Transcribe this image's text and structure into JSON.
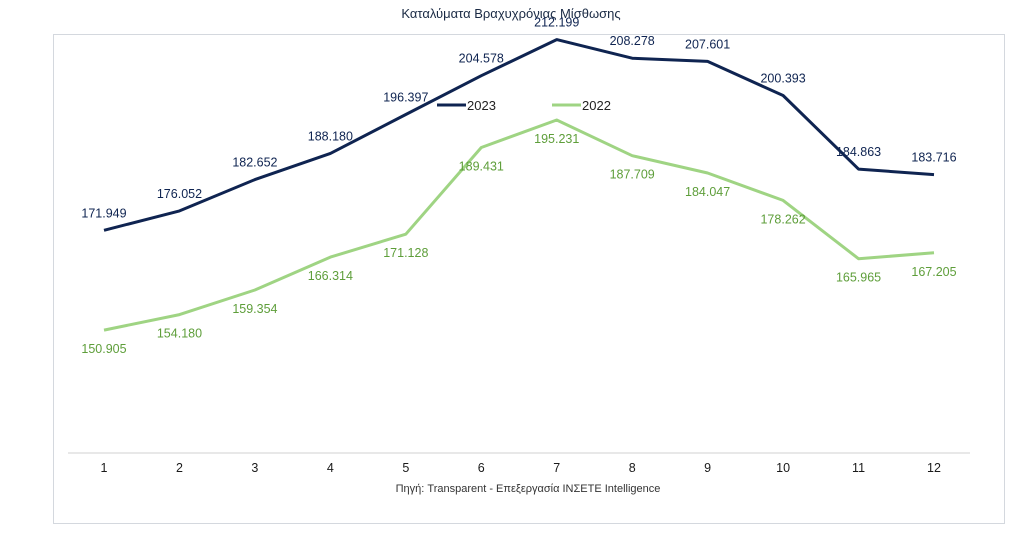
{
  "chart_data": {
    "type": "line",
    "title": "Καταλύματα Βραχυχρόνιας Μίσθωσης",
    "categories": [
      "1",
      "2",
      "3",
      "4",
      "5",
      "6",
      "7",
      "8",
      "9",
      "10",
      "11",
      "12"
    ],
    "series": [
      {
        "name": "2023",
        "color": "#0f2451",
        "label_color": "#0f2451",
        "values": [
          171949,
          176052,
          182652,
          188180,
          196397,
          204578,
          212199,
          208278,
          207601,
          200393,
          184863,
          183716
        ],
        "labels": [
          "171.949",
          "176.052",
          "182.652",
          "188.180",
          "196.397",
          "204.578",
          "212.199",
          "208.278",
          "207.601",
          "200.393",
          "184.863",
          "183.716"
        ]
      },
      {
        "name": "2022",
        "color": "#9fd483",
        "label_color": "#5e9e3a",
        "values": [
          150905,
          154180,
          159354,
          166314,
          171128,
          189431,
          195231,
          187709,
          184047,
          178262,
          165965,
          167205
        ],
        "labels": [
          "150.905",
          "154.180",
          "159.354",
          "166.314",
          "171.128",
          "189.431",
          "195.231",
          "187.709",
          "184.047",
          "178.262",
          "165.965",
          "167.205"
        ]
      }
    ],
    "xlabel": "",
    "ylabel": "",
    "ylim": [
      0,
      300000
    ],
    "legend_position": "top-center",
    "source_note": "Πηγή: Transparent - Επεξεργασία ΙΝΣΕΤΕ Intelligence"
  }
}
